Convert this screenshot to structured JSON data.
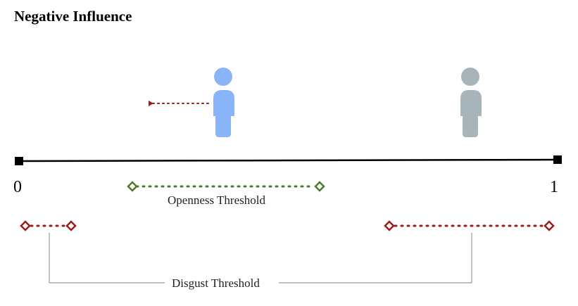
{
  "title": "Negative Influence",
  "axis": {
    "min_label": "0",
    "max_label": "1"
  },
  "agents": [
    {
      "role": "influencer",
      "color": "#8AB4F8",
      "position": 0.49
    },
    {
      "role": "other",
      "color": "#A7B5BA",
      "position": 0.87
    }
  ],
  "arrow": {
    "direction": "left",
    "color": "#9B1B1B"
  },
  "openness_threshold": {
    "label": "Openness Threshold",
    "range": [
      0.2,
      0.56
    ],
    "color": "#4A7A2A"
  },
  "disgust_threshold": {
    "label": "Disgust Threshold",
    "ranges": [
      [
        0.01,
        0.1
      ],
      [
        0.68,
        0.99
      ]
    ],
    "color": "#9B1B1B"
  }
}
